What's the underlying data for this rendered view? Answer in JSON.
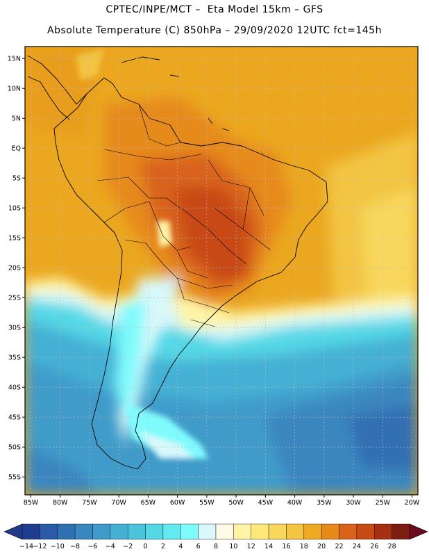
{
  "header": {
    "title_line1": "CPTEC/INPE/MCT –  Eta Model 15km – GFS",
    "title_line2": "Absolute Temperature (C) 850hPa – 29/09/2020 12UTC fct=145h"
  },
  "map": {
    "lat_labels": [
      "15N",
      "10N",
      "5N",
      "EQ",
      "5S",
      "10S",
      "15S",
      "20S",
      "25S",
      "30S",
      "35S",
      "40S",
      "45S",
      "50S",
      "55S"
    ],
    "lat_values": [
      15,
      10,
      5,
      0,
      -5,
      -10,
      -15,
      -20,
      -25,
      -30,
      -35,
      -40,
      -45,
      -50,
      -55
    ],
    "lon_labels": [
      "85W",
      "80W",
      "75W",
      "70W",
      "65W",
      "60W",
      "55W",
      "50W",
      "45W",
      "40W",
      "35W",
      "30W",
      "25W",
      "20W"
    ],
    "lon_values": [
      -85,
      -80,
      -75,
      -70,
      -65,
      -60,
      -55,
      -50,
      -45,
      -40,
      -35,
      -30,
      -25,
      -20
    ],
    "lat_range": [
      -58,
      17
    ],
    "lon_range": [
      -86,
      -19
    ]
  },
  "colorbar": {
    "labels": [
      "-14",
      "-12",
      "-10",
      "-8",
      "-6",
      "-4",
      "-2",
      "0",
      "2",
      "4",
      "6",
      "8",
      "10",
      "12",
      "14",
      "16",
      "18",
      "20",
      "22",
      "24",
      "26",
      "28"
    ],
    "colors": [
      "#1f3d8f",
      "#2b5ba6",
      "#3170b3",
      "#3a86bf",
      "#3f9bc9",
      "#45b0d4",
      "#4cc4dc",
      "#54d8e6",
      "#63eaf0",
      "#7ffbfd",
      "#d8f8fb",
      "#fffbe6",
      "#fff4a6",
      "#fde87a",
      "#f8d75c",
      "#f3c542",
      "#eeaa22",
      "#e68a1a",
      "#d9631a",
      "#c84a14",
      "#a63012",
      "#7d1c10"
    ],
    "under_color": "#213a8a",
    "over_color": "#6e0a1f"
  }
}
